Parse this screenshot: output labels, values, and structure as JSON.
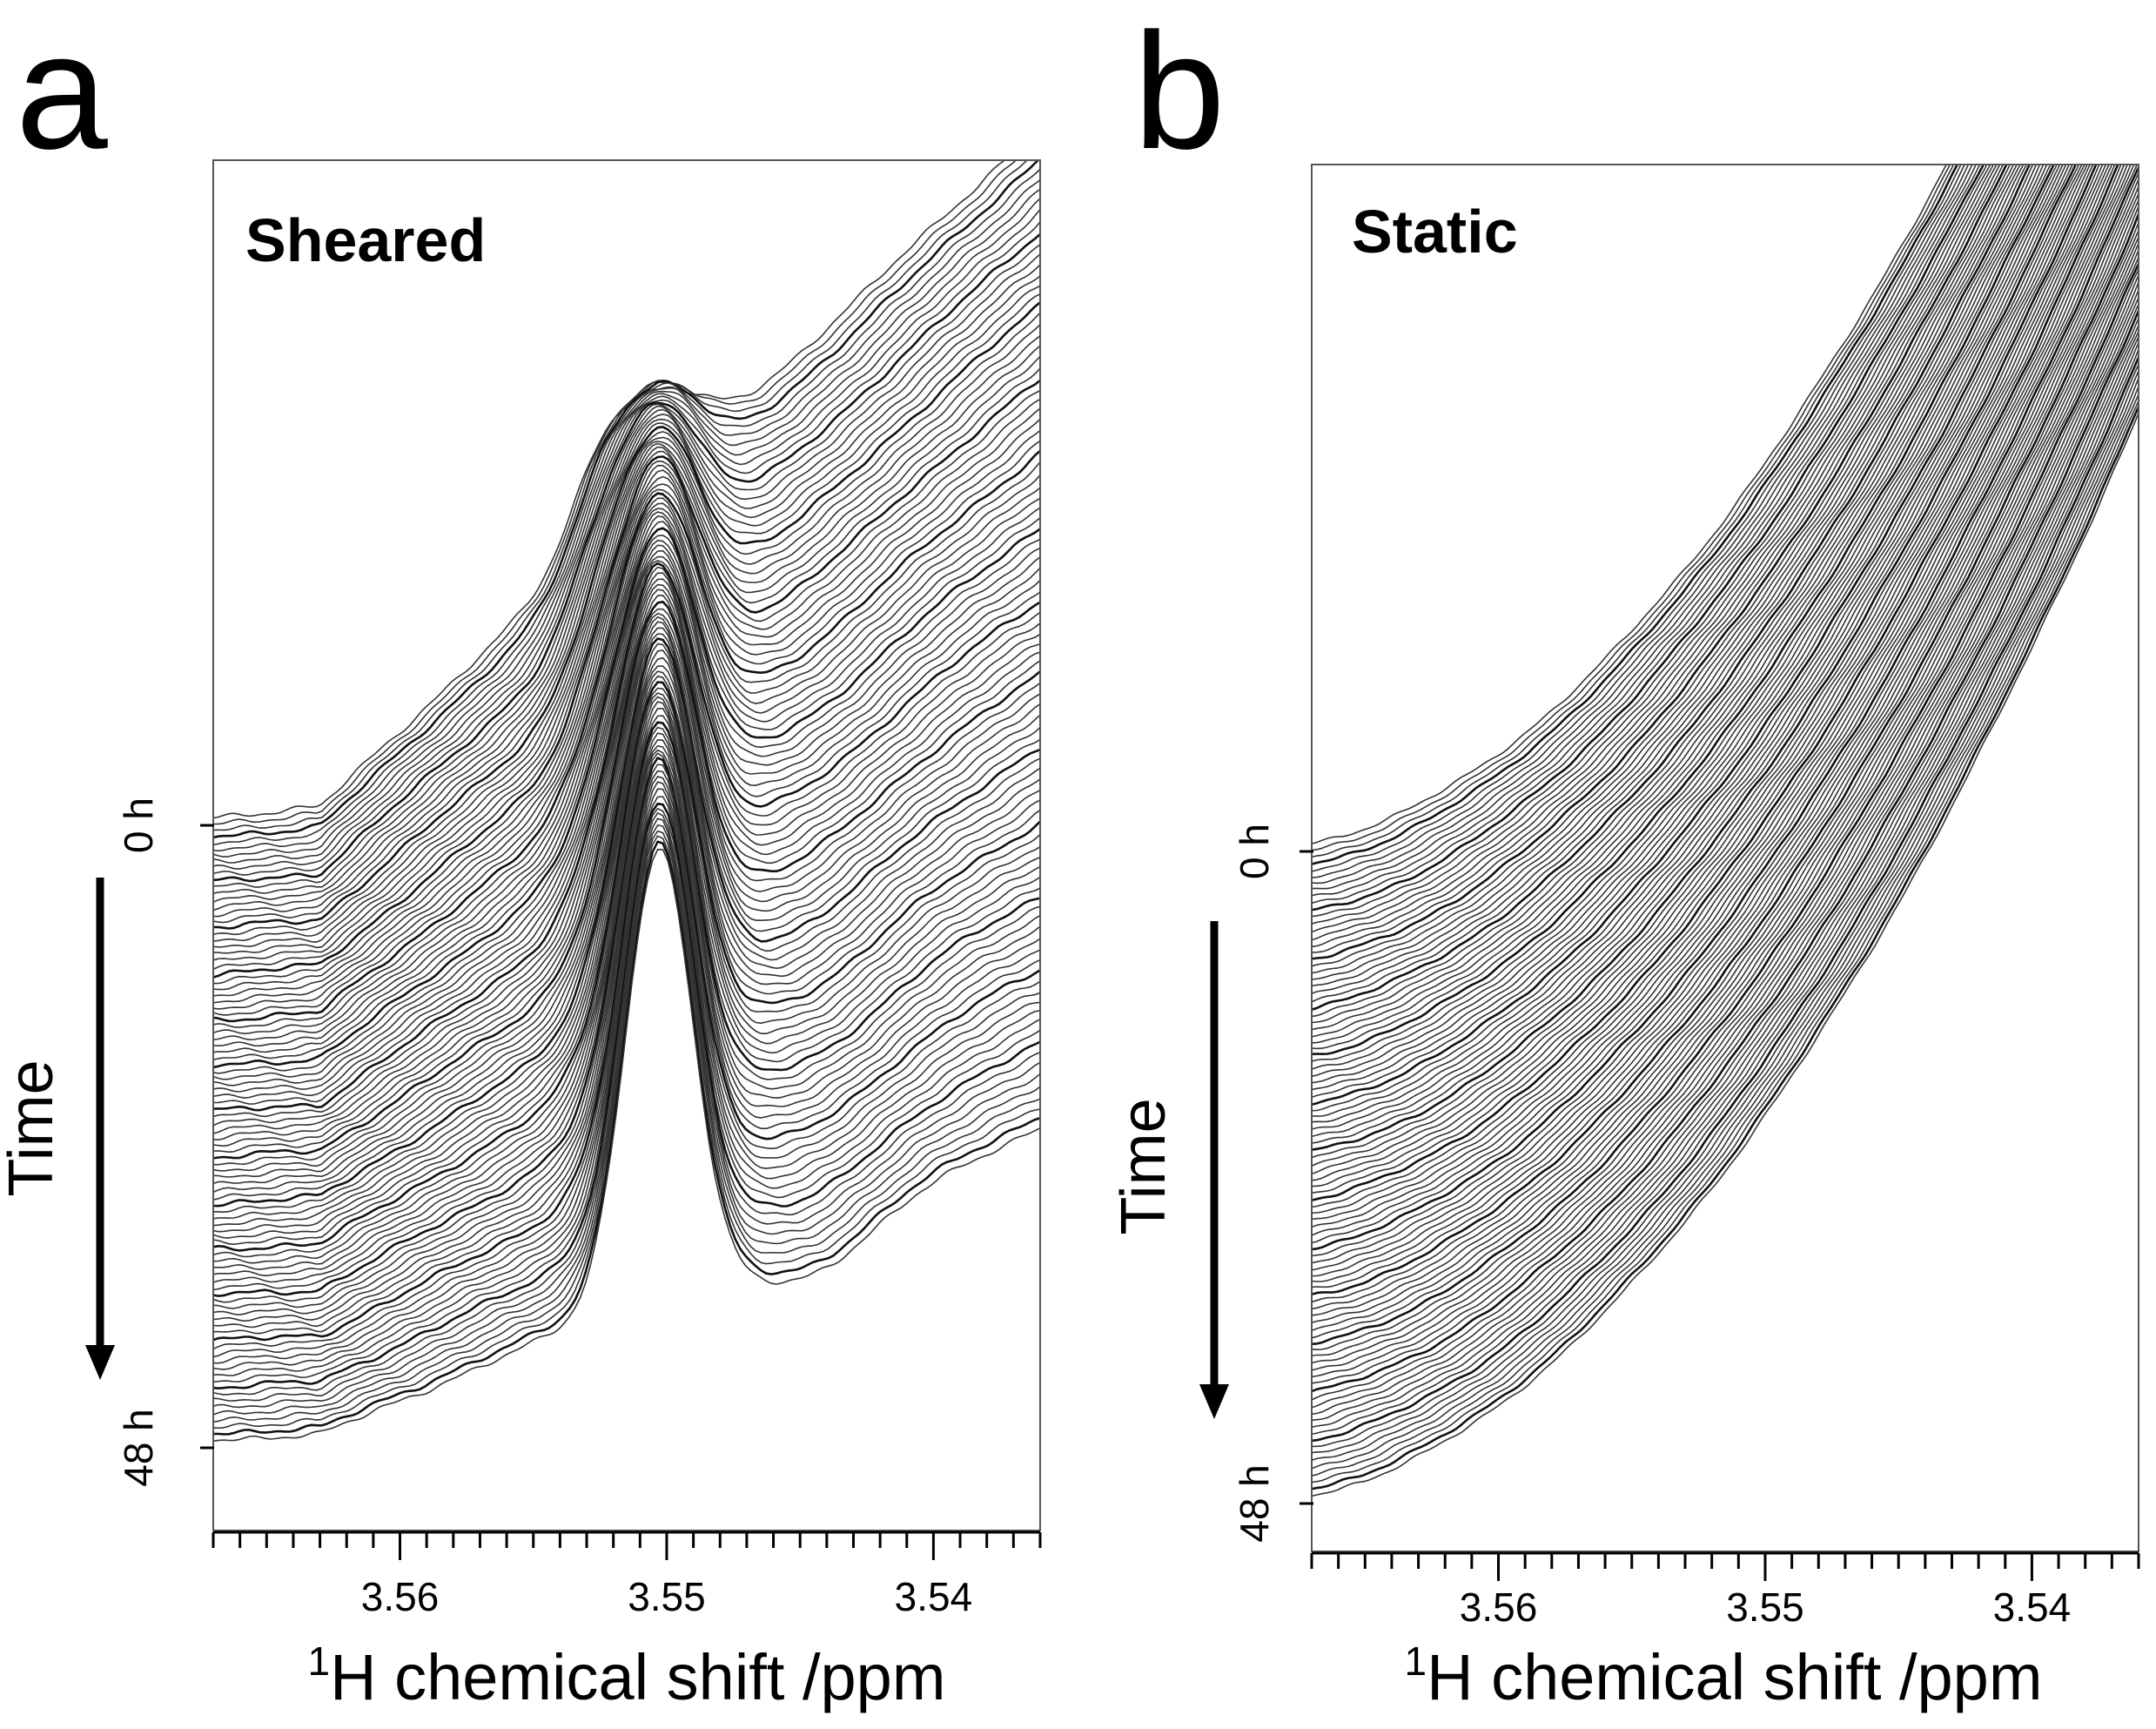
{
  "chart_data": [
    {
      "type": "line",
      "panel_letter": "a",
      "title": "Sheared",
      "xlabel_sup": "1",
      "xlabel": "H chemical shift /ppm",
      "xlim": [
        3.567,
        3.536
      ],
      "x_ticks": [
        3.56,
        3.55,
        3.54
      ],
      "x_tick_labels": [
        "3.56",
        "3.55",
        "3.54"
      ],
      "y_axis_label": "Time",
      "time_ticks": [
        "0 h",
        "48 h"
      ],
      "time_range_h": [
        0,
        48
      ],
      "n_spectra": 96,
      "series_description": "Stacked 1H NMR spectra recorded over 48 h; a peak at ~3.550 ppm grows and sharpens with time",
      "peak_ppm": 3.55,
      "first_spectrum": {
        "x": [
          3.567,
          3.565,
          3.563,
          3.56,
          3.558,
          3.555,
          3.553,
          3.551,
          3.55,
          3.549,
          3.547,
          3.545,
          3.542,
          3.54,
          3.538,
          3.536
        ],
        "y": [
          0.0,
          0.02,
          0.05,
          0.1,
          0.15,
          0.22,
          0.38,
          0.45,
          0.42,
          0.44,
          0.5,
          0.56,
          0.66,
          0.75,
          0.85,
          0.96
        ]
      },
      "last_spectrum": {
        "x": [
          3.567,
          3.565,
          3.563,
          3.56,
          3.558,
          3.555,
          3.553,
          3.551,
          3.55,
          3.549,
          3.547,
          3.545,
          3.542,
          3.54,
          3.538,
          3.536
        ],
        "y": [
          0.0,
          -0.01,
          0.0,
          0.02,
          0.06,
          0.15,
          0.35,
          0.62,
          0.77,
          0.68,
          0.4,
          0.28,
          0.24,
          0.26,
          0.3,
          0.33
        ]
      }
    },
    {
      "type": "line",
      "panel_letter": "b",
      "title": "Static",
      "xlabel_sup": "1",
      "xlabel": "H chemical shift /ppm",
      "xlim": [
        3.567,
        3.536
      ],
      "x_ticks": [
        3.56,
        3.55,
        3.54
      ],
      "x_tick_labels": [
        "3.56",
        "3.55",
        "3.54"
      ],
      "y_axis_label": "Time",
      "time_ticks": [
        "0 h",
        "48 h"
      ],
      "time_range_h": [
        0,
        48
      ],
      "n_spectra": 96,
      "series_description": "Stacked 1H NMR spectra recorded over 48 h; smooth rising baseline with no resolved peak",
      "first_spectrum": {
        "x": [
          3.567,
          3.563,
          3.56,
          3.556,
          3.553,
          3.55,
          3.547,
          3.544,
          3.541,
          3.538,
          3.536
        ],
        "y": [
          0.0,
          0.02,
          0.06,
          0.15,
          0.28,
          0.42,
          0.58,
          0.75,
          0.92,
          1.1,
          1.25
        ]
      },
      "last_spectrum": {
        "x": [
          3.567,
          3.563,
          3.56,
          3.556,
          3.553,
          3.55,
          3.547,
          3.544,
          3.541,
          3.538,
          3.536
        ],
        "y": [
          0.0,
          0.02,
          0.06,
          0.15,
          0.28,
          0.42,
          0.58,
          0.75,
          0.92,
          1.1,
          1.25
        ]
      }
    }
  ]
}
